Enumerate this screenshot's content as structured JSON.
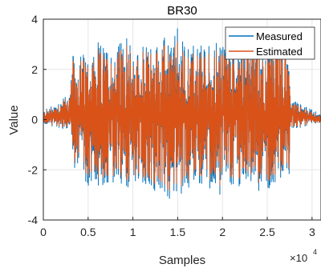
{
  "chart_data": {
    "type": "line",
    "title": "BR30",
    "xlabel": "Samples",
    "ylabel": "Value",
    "xlim": [
      0,
      31000
    ],
    "ylim": [
      -4,
      4
    ],
    "x_multiplier_base": "×10",
    "x_multiplier_exponent": "4",
    "xticks": [
      0,
      5000,
      10000,
      15000,
      20000,
      25000,
      30000
    ],
    "xtick_labels": [
      "0",
      "0.5",
      "1",
      "1.5",
      "2",
      "2.5",
      "3"
    ],
    "yticks": [
      -4,
      -2,
      0,
      2,
      4
    ],
    "ytick_labels": [
      "-4",
      "-2",
      "0",
      "2",
      "4"
    ],
    "grid": true,
    "legend_position": "top-right",
    "series": [
      {
        "name": "Measured",
        "color": "#0072BD",
        "envelope_x": [
          0,
          1500,
          3000,
          3300,
          5000,
          7000,
          9000,
          11000,
          13000,
          15000,
          17000,
          19000,
          21000,
          23000,
          25000,
          26500,
          27500,
          27700,
          28500,
          30000,
          31000
        ],
        "envelope_upper": [
          0.35,
          0.7,
          1.1,
          2.5,
          2.8,
          3.0,
          3.2,
          2.8,
          3.2,
          3.5,
          3.0,
          3.0,
          3.2,
          3.6,
          3.0,
          3.3,
          2.4,
          0.7,
          0.7,
          0.4,
          0.2
        ],
        "envelope_lower": [
          -0.2,
          -0.3,
          -0.6,
          -1.8,
          -2.7,
          -2.7,
          -2.8,
          -2.6,
          -3.2,
          -2.8,
          -2.7,
          -3.0,
          -2.8,
          -2.7,
          -2.7,
          -2.5,
          -2.0,
          -0.3,
          -0.3,
          -0.2,
          -0.1
        ]
      },
      {
        "name": "Estimated",
        "color": "#D95319",
        "envelope_x": [
          0,
          1500,
          3000,
          3300,
          5000,
          7000,
          9000,
          11000,
          13000,
          15000,
          17000,
          19000,
          21000,
          23000,
          25000,
          26500,
          27500,
          27700,
          28500,
          30000,
          31000
        ],
        "envelope_upper": [
          0.3,
          0.6,
          1.0,
          2.3,
          2.6,
          2.7,
          2.9,
          2.6,
          3.0,
          3.0,
          2.7,
          2.7,
          2.9,
          3.0,
          2.8,
          3.0,
          2.2,
          0.6,
          0.6,
          0.3,
          0.15
        ],
        "envelope_lower": [
          -0.15,
          -0.25,
          -0.5,
          -1.6,
          -2.3,
          -2.4,
          -2.5,
          -2.4,
          -2.9,
          -2.5,
          -2.4,
          -2.6,
          -2.5,
          -2.4,
          -2.4,
          -2.2,
          -1.8,
          -0.25,
          -0.25,
          -0.15,
          -0.1
        ]
      }
    ]
  }
}
